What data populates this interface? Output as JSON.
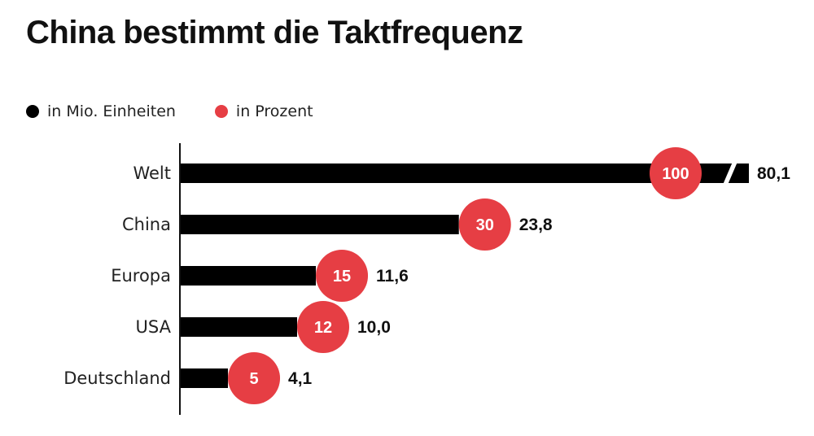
{
  "title": "China bestimmt die Taktfrequenz",
  "legend": [
    {
      "label": "in Mio. Einheiten",
      "color": "#000000"
    },
    {
      "label": "in Prozent",
      "color": "#e63e44"
    }
  ],
  "colors": {
    "bar": "#000000",
    "circle": "#e63e44",
    "circle_text": "#ffffff",
    "value_text": "#111111"
  },
  "chart_data": {
    "type": "bar",
    "orientation": "horizontal",
    "categories": [
      "Welt",
      "China",
      "Europa",
      "USA",
      "Deutschland"
    ],
    "series": [
      {
        "name": "in Mio. Einheiten",
        "values": [
          80.1,
          23.8,
          11.6,
          10.0,
          4.1
        ],
        "labels": [
          "80,1",
          "23,8",
          "11,6",
          "10,0",
          "4,1"
        ]
      },
      {
        "name": "in Prozent",
        "values": [
          100,
          30,
          15,
          12,
          5
        ],
        "labels": [
          "100",
          "30",
          "15",
          "12",
          "5"
        ]
      }
    ],
    "axis_break_on": "Welt",
    "grid": false
  }
}
